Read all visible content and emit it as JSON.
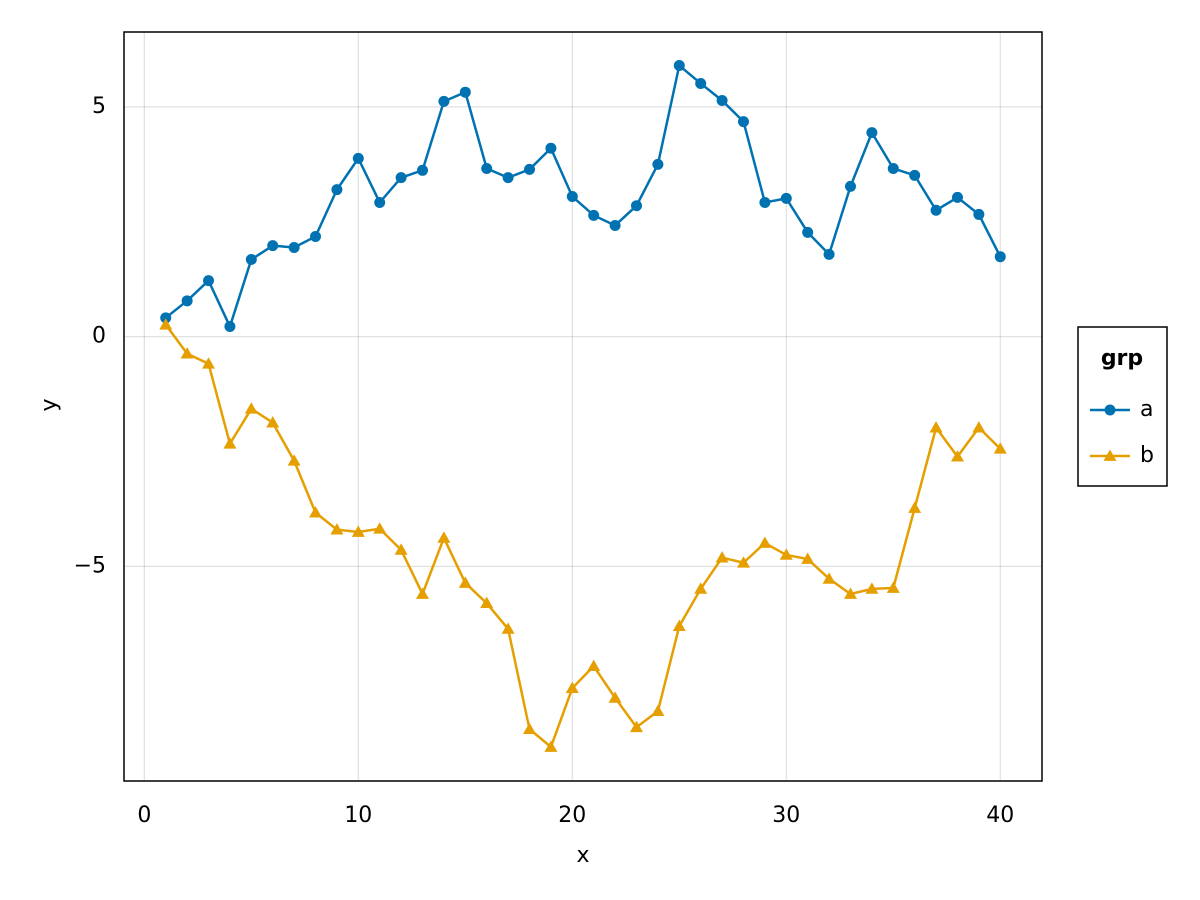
{
  "chart_data": {
    "type": "line",
    "x_label": "x",
    "y_label": "y",
    "x": [
      1,
      2,
      3,
      4,
      5,
      6,
      7,
      8,
      9,
      10,
      11,
      12,
      13,
      14,
      15,
      16,
      17,
      18,
      19,
      20,
      21,
      22,
      23,
      24,
      25,
      26,
      27,
      28,
      29,
      30,
      31,
      32,
      33,
      34,
      35,
      36,
      37,
      38,
      39,
      40
    ],
    "series": [
      {
        "name": "a",
        "color": "#0072b2",
        "marker": "circle",
        "values": [
          0.41,
          0.78,
          1.22,
          0.22,
          1.68,
          1.98,
          1.94,
          2.18,
          3.2,
          3.88,
          2.92,
          3.46,
          3.62,
          5.12,
          5.32,
          3.66,
          3.46,
          3.64,
          4.1,
          3.05,
          2.64,
          2.42,
          2.85,
          3.75,
          5.9,
          5.51,
          5.14,
          4.68,
          2.92,
          3.01,
          2.27,
          1.79,
          3.27,
          4.44,
          3.66,
          3.51,
          2.75,
          3.03,
          2.66,
          1.74
        ]
      },
      {
        "name": "b",
        "color": "#e69f00",
        "marker": "triangle",
        "values": [
          0.26,
          -0.37,
          -0.59,
          -2.33,
          -1.57,
          -1.87,
          -2.7,
          -3.83,
          -4.2,
          -4.25,
          -4.18,
          -4.64,
          -5.6,
          -4.38,
          -5.36,
          -5.8,
          -6.36,
          -8.54,
          -8.93,
          -7.65,
          -7.17,
          -7.86,
          -8.5,
          -8.15,
          -6.3,
          -5.49,
          -4.81,
          -4.92,
          -4.49,
          -4.75,
          -4.84,
          -5.27,
          -5.6,
          -5.49,
          -5.47,
          -3.73,
          -1.98,
          -2.61,
          -1.98,
          -2.44
        ]
      }
    ],
    "xlim": [
      -0.95,
      41.95
    ],
    "ylim": [
      -9.67,
      6.63
    ],
    "xticks": [
      0,
      10,
      20,
      30,
      40
    ],
    "yticks": [
      {
        "value": -5,
        "label": "−5"
      },
      0,
      5
    ],
    "grid": true,
    "legend_title": "grp",
    "legend_position": "right"
  }
}
